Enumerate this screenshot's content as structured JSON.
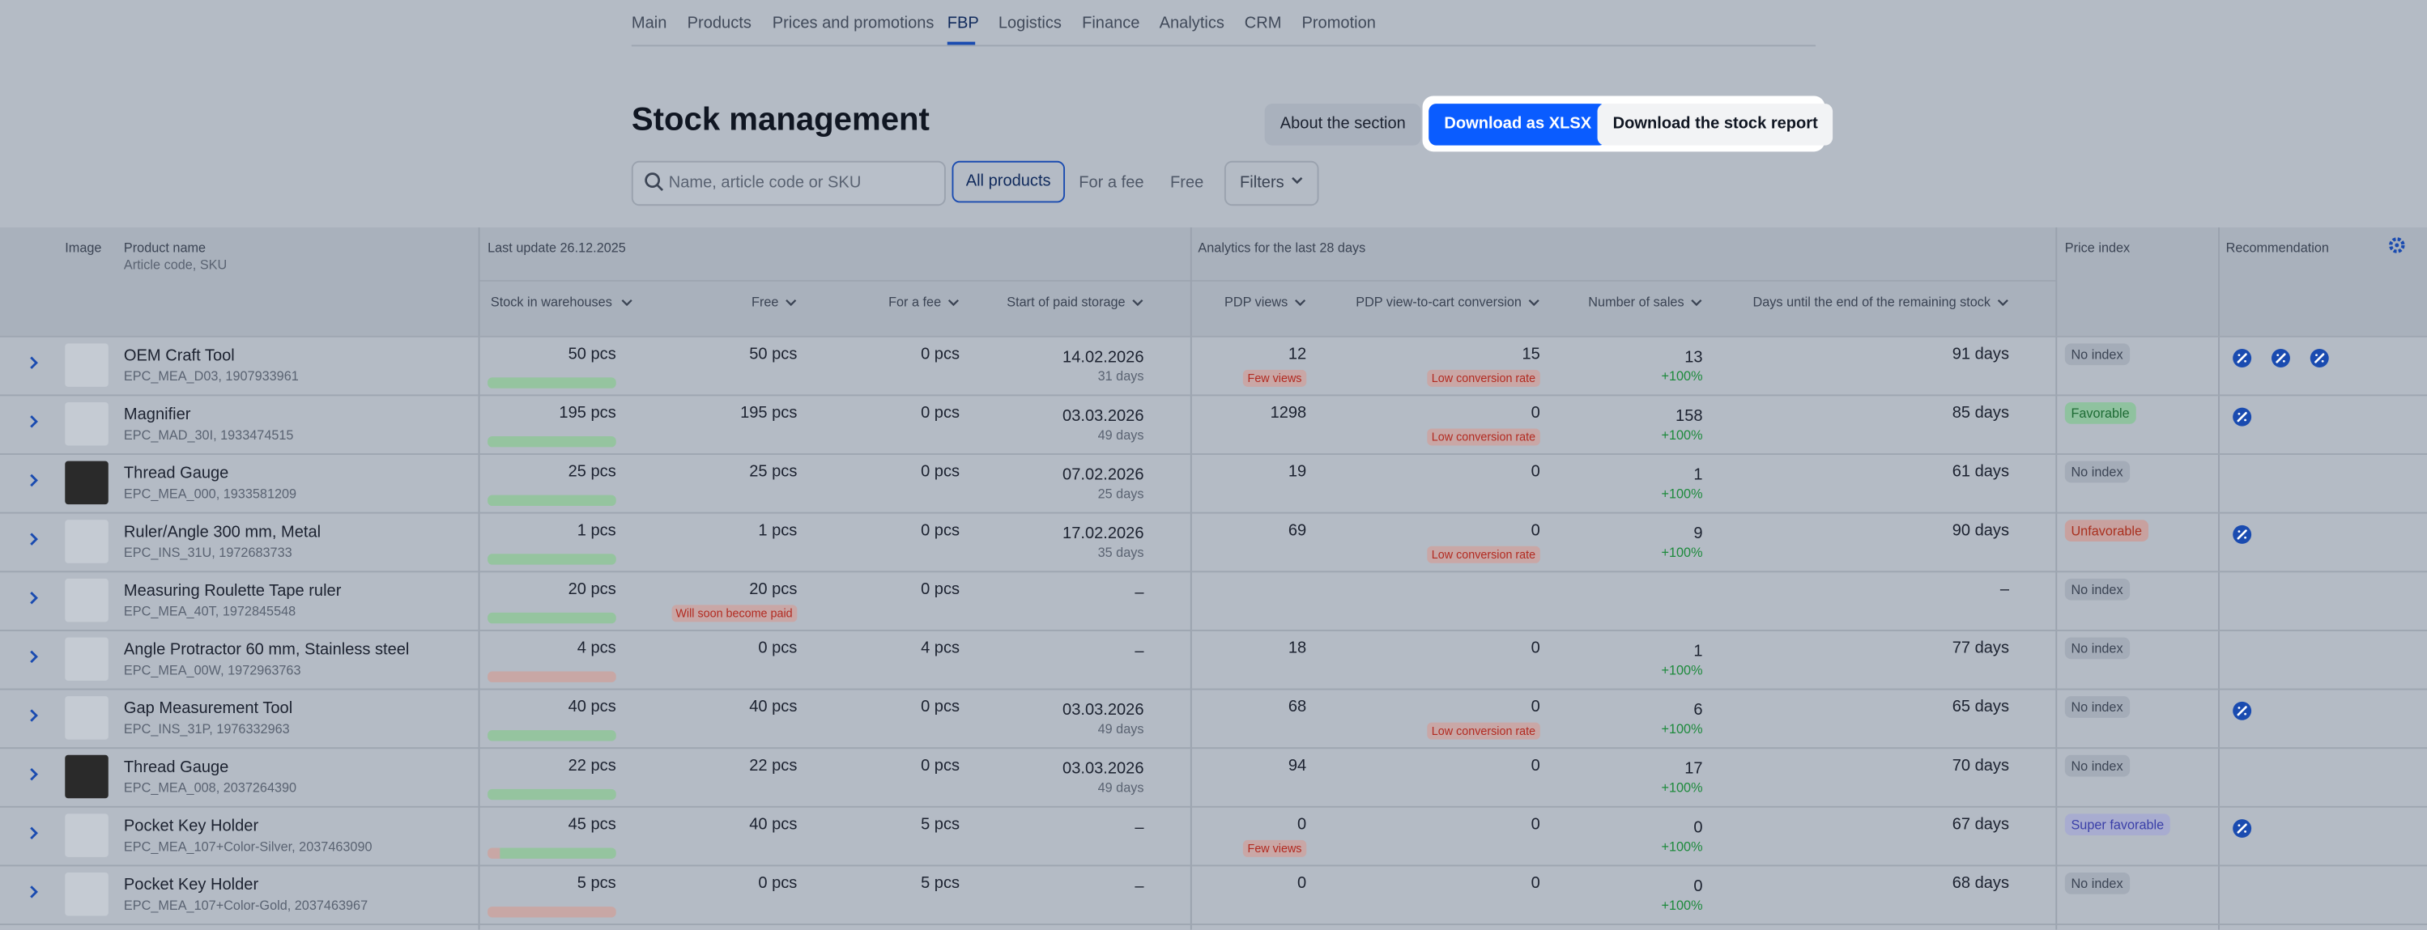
{
  "nav": [
    "Main",
    "Products",
    "Prices and promotions",
    "FBP",
    "Logistics",
    "Finance",
    "Analytics",
    "CRM",
    "Promotion"
  ],
  "title": "Stock management",
  "buttons": [
    "About the section",
    "Download as XLSX",
    "Download the stock report"
  ],
  "search_placeholder": "Name, article code or SKU",
  "filter_tabs": [
    "All products",
    "For a fee",
    "Free"
  ],
  "filters_button": "Filters",
  "table": {
    "group_headers": {
      "image": "Image",
      "product_name": "Product name",
      "product_sub": "Article code, SKU",
      "last_update": "Last update 26.12.2025",
      "analytics": "Analytics for the last 28 days",
      "price_index": "Price index",
      "recommendation": "Recommendation"
    },
    "columns": [
      "Stock in warehouses",
      "Free",
      "For a fee",
      "Start of paid storage",
      "PDP views",
      "PDP view-to-cart conversion",
      "Number of sales",
      "Days until the end of the remaining stock"
    ],
    "rows": [
      {
        "name": "OEM Craft Tool",
        "code": "EPC_MEA_D03, 1907933961",
        "stock": "50 pcs",
        "free": "50 pcs",
        "fee": "0 pcs",
        "start": "14.02.2026",
        "start_days": "31 days",
        "views": "12",
        "views_note": "Few views",
        "conversion": "15",
        "conversion_note": "Low conversion rate",
        "sales": "13",
        "sales_change": "+100%",
        "days": "91 days",
        "price_index": "No index"
      },
      {
        "name": "Magnifier",
        "code": "EPC_MAD_30I, 1933474515",
        "stock": "195 pcs",
        "free": "195 pcs",
        "fee": "0 pcs",
        "start": "03.03.2026",
        "start_days": "49 days",
        "views": "1298",
        "conversion": "0",
        "conversion_note": "Low conversion rate",
        "sales": "158",
        "sales_change": "+100%",
        "days": "85 days",
        "price_index": "Favorable"
      },
      {
        "name": "Thread Gauge",
        "code": "EPC_MEA_000, 1933581209",
        "stock": "25 pcs",
        "free": "25 pcs",
        "fee": "0 pcs",
        "start": "07.02.2026",
        "start_days": "25 days",
        "views": "19",
        "conversion": "0",
        "sales": "1",
        "sales_change": "+100%",
        "days": "61 days",
        "price_index": "No index"
      },
      {
        "name": "Ruler/Angle 300 mm, Metal",
        "code": "EPC_INS_31U, 1972683733",
        "stock": "1 pcs",
        "free": "1 pcs",
        "fee": "0 pcs",
        "start": "17.02.2026",
        "start_days": "35 days",
        "views": "69",
        "conversion": "0",
        "conversion_note": "Low conversion rate",
        "sales": "9",
        "sales_change": "+100%",
        "days": "90 days",
        "price_index": "Unfavorable"
      },
      {
        "name": "Measuring Roulette Tape ruler",
        "code": "EPC_MEA_40T, 1972845548",
        "stock": "20 pcs",
        "free": "20 pcs",
        "free_note": "Will soon become paid",
        "fee": "0 pcs",
        "start": "–",
        "days": "–",
        "price_index": "No index"
      },
      {
        "name": "Angle Protractor 60 mm, Stainless steel",
        "code": "EPC_MEA_00W, 1972963763",
        "stock": "4 pcs",
        "free": "0 pcs",
        "fee": "4 pcs",
        "start": "–",
        "views": "18",
        "conversion": "0",
        "sales": "1",
        "sales_change": "+100%",
        "days": "77 days",
        "price_index": "No index"
      },
      {
        "name": "Gap Measurement Tool",
        "code": "EPC_INS_31P, 1976332963",
        "stock": "40 pcs",
        "free": "40 pcs",
        "fee": "0 pcs",
        "start": "03.03.2026",
        "start_days": "49 days",
        "views": "68",
        "conversion": "0",
        "conversion_note": "Low conversion rate",
        "sales": "6",
        "sales_change": "+100%",
        "days": "65 days",
        "price_index": "No index"
      },
      {
        "name": "Thread Gauge",
        "code": "EPC_MEA_008, 2037264390",
        "stock": "22 pcs",
        "free": "22 pcs",
        "fee": "0 pcs",
        "start": "03.03.2026",
        "start_days": "49 days",
        "views": "94",
        "conversion": "0",
        "sales": "17",
        "sales_change": "+100%",
        "days": "70 days",
        "price_index": "No index"
      },
      {
        "name": "Pocket Key Holder",
        "code": "EPC_MEA_107+Color-Silver, 2037463090",
        "stock": "45 pcs",
        "free": "40 pcs",
        "fee": "5 pcs",
        "start": "–",
        "views": "0",
        "views_note": "Few views",
        "conversion": "0",
        "sales": "0",
        "sales_change": "+100%",
        "days": "67 days",
        "price_index": "Super favorable"
      },
      {
        "name": "Pocket Key Holder",
        "code": "EPC_MEA_107+Color-Gold, 2037463967",
        "stock": "5 pcs",
        "free": "0 pcs",
        "fee": "5 pcs",
        "start": "–",
        "views": "0",
        "conversion": "0",
        "sales": "0",
        "sales_change": "+100%",
        "days": "68 days",
        "price_index": "No index"
      }
    ]
  }
}
